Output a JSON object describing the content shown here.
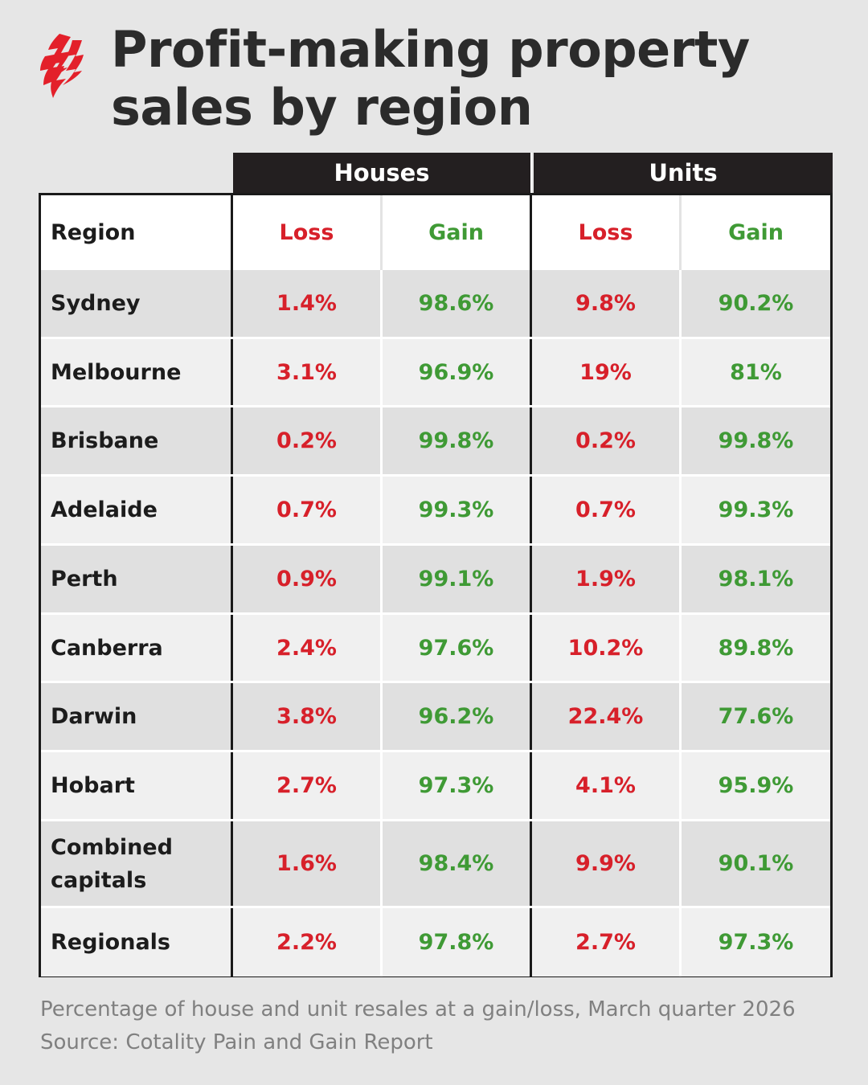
{
  "title_line1": "Profit-making property",
  "title_line2": "sales by region",
  "logo_icon": "sbs-logo-icon",
  "colors": {
    "loss": "#d7202a",
    "gain": "#3f9a35",
    "header": "#231f20",
    "logo": "#e3202a"
  },
  "chart_data": {
    "type": "table",
    "group_headers": [
      "Houses",
      "Units"
    ],
    "columns": [
      "Region",
      "Loss",
      "Gain",
      "Loss",
      "Gain"
    ],
    "rows": [
      {
        "region": "Sydney",
        "houses_loss": "1.4%",
        "houses_gain": "98.6%",
        "units_loss": "9.8%",
        "units_gain": "90.2%"
      },
      {
        "region": "Melbourne",
        "houses_loss": "3.1%",
        "houses_gain": "96.9%",
        "units_loss": "19%",
        "units_gain": "81%"
      },
      {
        "region": "Brisbane",
        "houses_loss": "0.2%",
        "houses_gain": "99.8%",
        "units_loss": "0.2%",
        "units_gain": "99.8%"
      },
      {
        "region": "Adelaide",
        "houses_loss": "0.7%",
        "houses_gain": "99.3%",
        "units_loss": "0.7%",
        "units_gain": "99.3%"
      },
      {
        "region": "Perth",
        "houses_loss": "0.9%",
        "houses_gain": "99.1%",
        "units_loss": "1.9%",
        "units_gain": "98.1%"
      },
      {
        "region": "Canberra",
        "houses_loss": "2.4%",
        "houses_gain": "97.6%",
        "units_loss": "10.2%",
        "units_gain": "89.8%"
      },
      {
        "region": "Darwin",
        "houses_loss": "3.8%",
        "houses_gain": "96.2%",
        "units_loss": "22.4%",
        "units_gain": "77.6%"
      },
      {
        "region": "Hobart",
        "houses_loss": "2.7%",
        "houses_gain": "97.3%",
        "units_loss": "4.1%",
        "units_gain": "95.9%"
      },
      {
        "region": "Combined capitals",
        "houses_loss": "1.6%",
        "houses_gain": "98.4%",
        "units_loss": "9.9%",
        "units_gain": "90.1%"
      },
      {
        "region": "Regionals",
        "houses_loss": "2.2%",
        "houses_gain": "97.8%",
        "units_loss": "2.7%",
        "units_gain": "97.3%"
      }
    ]
  },
  "caption_line1": "Percentage of house and unit resales at a gain/loss, March quarter 2026",
  "caption_line2": "Source: Cotality Pain and Gain Report"
}
